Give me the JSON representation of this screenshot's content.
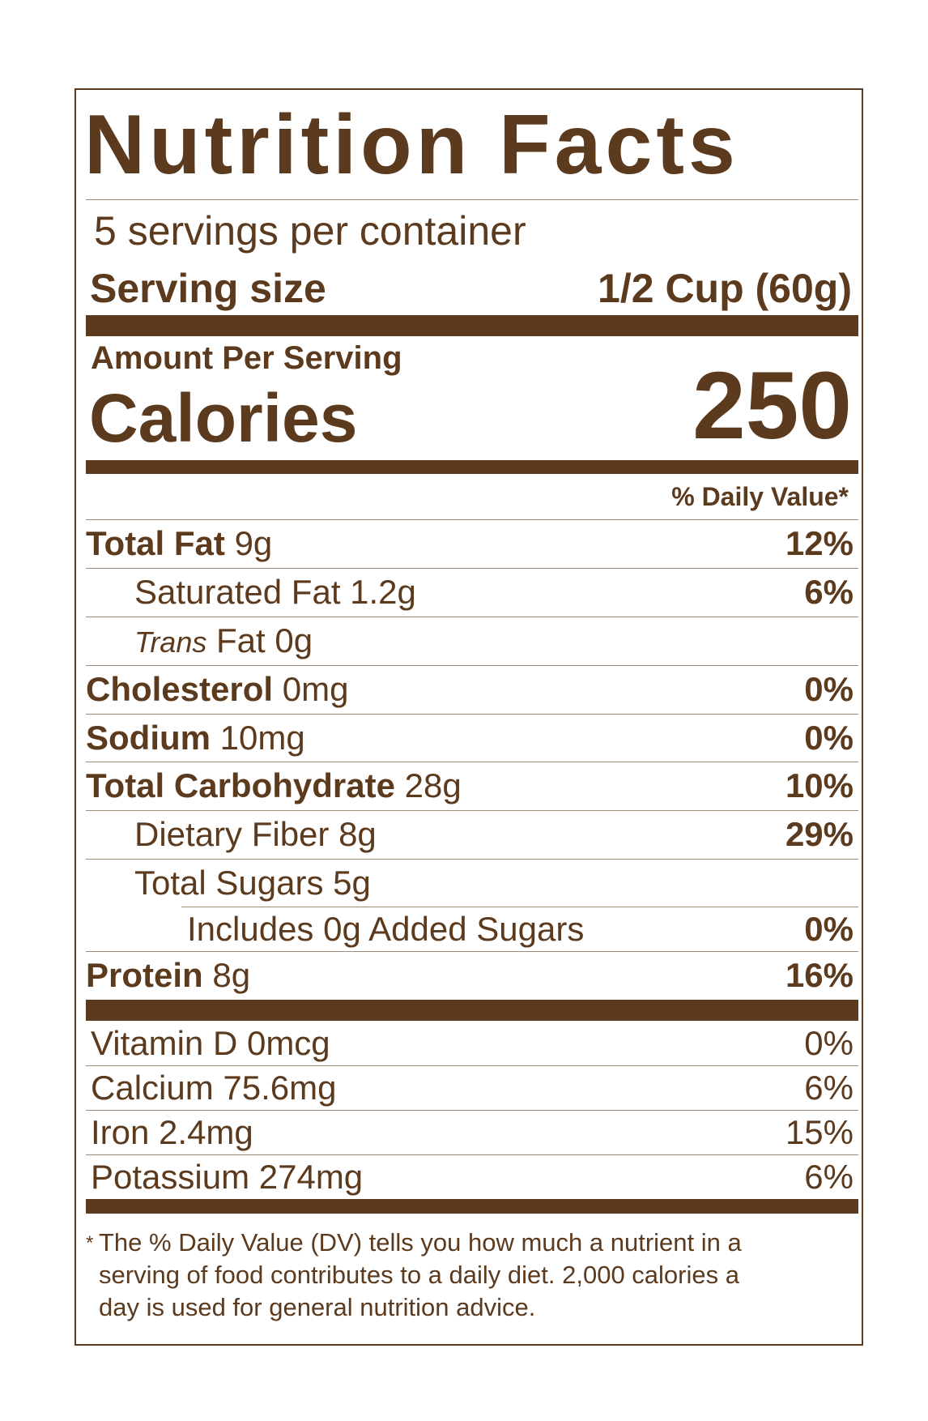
{
  "title": "Nutrition Facts",
  "servings_per_container": "5 servings per container",
  "serving_size": {
    "label": "Serving size",
    "value": "1/2 Cup (60g)"
  },
  "amount_per_serving": "Amount Per Serving",
  "calories": {
    "label": "Calories",
    "value": "250"
  },
  "daily_value_header": "% Daily Value*",
  "nutrients": [
    {
      "name": "Total Fat",
      "amount": "9g",
      "dv": "12%"
    },
    {
      "name": "Saturated Fat",
      "amount": "1.2g",
      "dv": "6%"
    },
    {
      "name": "Trans",
      "name_rest": "Fat",
      "amount": "0g",
      "dv": ""
    },
    {
      "name": "Cholesterol",
      "amount": "0mg",
      "dv": "0%"
    },
    {
      "name": "Sodium",
      "amount": "10mg",
      "dv": "0%"
    },
    {
      "name": "Total Carbohydrate",
      "amount": "28g",
      "dv": "10%"
    },
    {
      "name": "Dietary Fiber",
      "amount": "8g",
      "dv": "29%"
    },
    {
      "name": "Total Sugars",
      "amount": "5g",
      "dv": ""
    },
    {
      "name": "Includes 0g Added Sugars",
      "amount": "",
      "dv": "0%"
    },
    {
      "name": "Protein",
      "amount": "8g",
      "dv": "16%"
    }
  ],
  "vitamins": [
    {
      "label": "Vitamin D 0mcg",
      "dv": "0%"
    },
    {
      "label": "Calcium 75.6mg",
      "dv": "6%"
    },
    {
      "label": "Iron 2.4mg",
      "dv": "15%"
    },
    {
      "label": "Potassium 274mg",
      "dv": "6%"
    }
  ],
  "footnote": {
    "asterisk": "*",
    "lines": [
      "The % Daily Value (DV) tells you how much a nutrient in a",
      "serving of food contributes to a daily diet. 2,000 calories a",
      "day is used for general nutrition advice."
    ]
  },
  "colors": {
    "ink": "#5c3a1e",
    "rule": "#9c8a78"
  }
}
